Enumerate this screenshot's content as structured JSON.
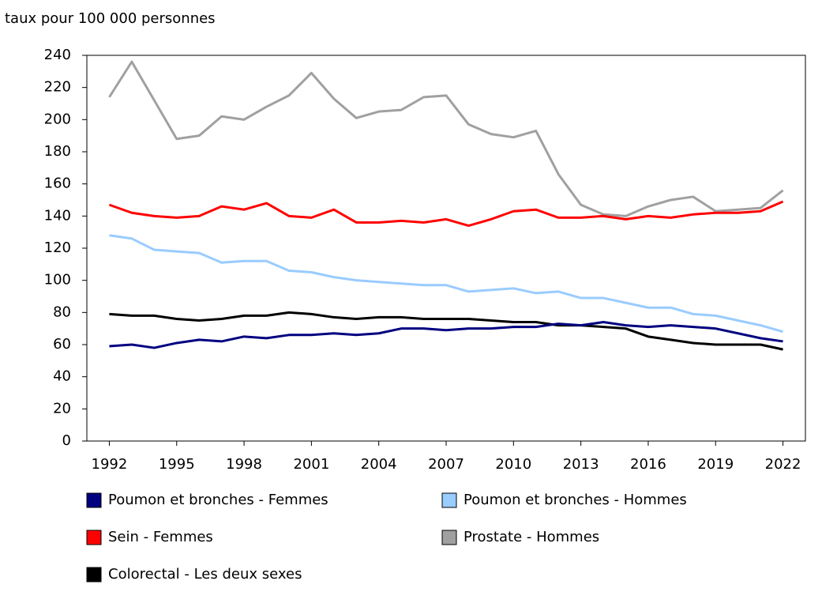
{
  "chart_data": {
    "type": "line",
    "y_label": "taux pour 100 000 personnes",
    "x": [
      1992,
      1993,
      1994,
      1995,
      1996,
      1997,
      1998,
      1999,
      2000,
      2001,
      2002,
      2003,
      2004,
      2005,
      2006,
      2007,
      2008,
      2009,
      2010,
      2011,
      2012,
      2013,
      2014,
      2015,
      2016,
      2017,
      2018,
      2019,
      2020,
      2021,
      2022
    ],
    "xlim": [
      1991,
      2023
    ],
    "xticks": [
      1992,
      1995,
      1998,
      2001,
      2004,
      2007,
      2010,
      2013,
      2016,
      2019,
      2022
    ],
    "ylim": [
      0,
      240
    ],
    "yticks": [
      0,
      20,
      40,
      60,
      80,
      100,
      120,
      140,
      160,
      180,
      200,
      220,
      240
    ],
    "grid": false,
    "series": [
      {
        "name": "Poumon et bronches - Femmes",
        "color": "#000080",
        "values": [
          59,
          60,
          58,
          61,
          63,
          62,
          65,
          64,
          66,
          66,
          67,
          66,
          67,
          70,
          70,
          69,
          70,
          70,
          71,
          71,
          73,
          72,
          74,
          72,
          71,
          72,
          71,
          70,
          67,
          64,
          62
        ]
      },
      {
        "name": "Poumon et bronches - Hommes",
        "color": "#99ccff",
        "values": [
          128,
          126,
          119,
          118,
          117,
          111,
          112,
          112,
          106,
          105,
          102,
          100,
          99,
          98,
          97,
          97,
          93,
          94,
          95,
          92,
          93,
          89,
          89,
          86,
          83,
          83,
          79,
          78,
          75,
          72,
          68
        ]
      },
      {
        "name": "Sein - Femmes",
        "color": "#ff0000",
        "values": [
          147,
          142,
          140,
          139,
          140,
          146,
          144,
          148,
          140,
          139,
          144,
          136,
          136,
          137,
          136,
          138,
          134,
          138,
          143,
          144,
          139,
          139,
          140,
          138,
          140,
          139,
          141,
          142,
          142,
          143,
          149
        ]
      },
      {
        "name": "Prostate - Hommes",
        "color": "#a0a0a0",
        "values": [
          214,
          236,
          212,
          188,
          190,
          202,
          200,
          208,
          215,
          229,
          213,
          201,
          205,
          206,
          214,
          215,
          197,
          191,
          189,
          193,
          166,
          147,
          141,
          140,
          146,
          150,
          152,
          143,
          144,
          145,
          156
        ]
      },
      {
        "name": "Colorectal - Les deux sexes",
        "color": "#000000",
        "values": [
          79,
          78,
          78,
          76,
          75,
          76,
          78,
          78,
          80,
          79,
          77,
          76,
          77,
          77,
          76,
          76,
          76,
          75,
          74,
          74,
          72,
          72,
          71,
          70,
          65,
          63,
          61,
          60,
          60,
          60,
          57
        ]
      }
    ]
  }
}
